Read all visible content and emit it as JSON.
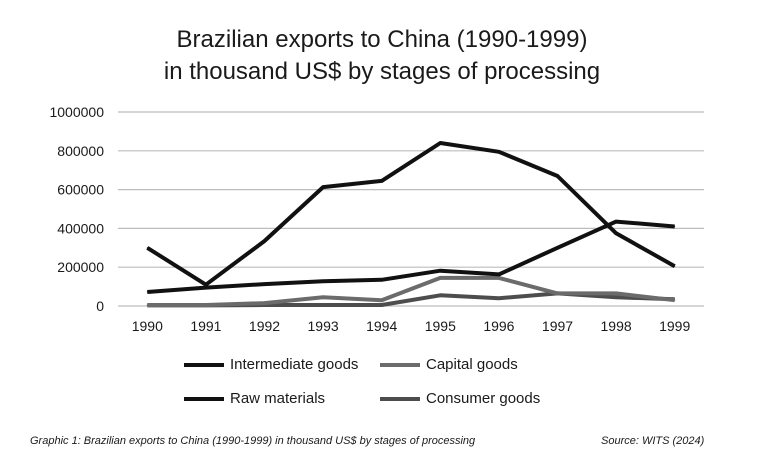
{
  "chart_data": {
    "type": "line",
    "title": "Brazilian exports to China (1990-1999)",
    "subtitle": "in  thousand US$ by stages of processing",
    "xlabel": "",
    "ylabel": "",
    "ylim": [
      0,
      1000000
    ],
    "yticks": [
      "0",
      "200000",
      "400000",
      "600000",
      "800000",
      "1000000"
    ],
    "ytick_values": [
      0,
      200000,
      400000,
      600000,
      800000,
      1000000
    ],
    "categories": [
      "1990",
      "1991",
      "1992",
      "1993",
      "1994",
      "1995",
      "1996",
      "1997",
      "1998",
      "1999"
    ],
    "grid": "horizontal",
    "legend_position": "bottom",
    "series": [
      {
        "name": "Intermediate goods",
        "color": "#111111",
        "values": [
          300000,
          110000,
          335000,
          613000,
          645000,
          840000,
          795000,
          670000,
          375000,
          205000
        ]
      },
      {
        "name": "Capital goods",
        "color": "#6b6b6b",
        "values": [
          5000,
          5000,
          15000,
          45000,
          30000,
          145000,
          145000,
          65000,
          65000,
          30000
        ]
      },
      {
        "name": "Raw materials",
        "color": "#111111",
        "values": [
          72000,
          95000,
          113000,
          128000,
          135000,
          182000,
          163000,
          300000,
          435000,
          410000
        ]
      },
      {
        "name": "Consumer goods",
        "color": "#4d4d4d",
        "values": [
          3000,
          3000,
          5000,
          5000,
          5000,
          55000,
          40000,
          65000,
          45000,
          35000
        ]
      }
    ]
  },
  "caption": {
    "text": "Graphic 1: Brazilian exports to China (1990-1999) in thousand US$ by stages of processing",
    "source": "Source: WITS (2024)"
  }
}
